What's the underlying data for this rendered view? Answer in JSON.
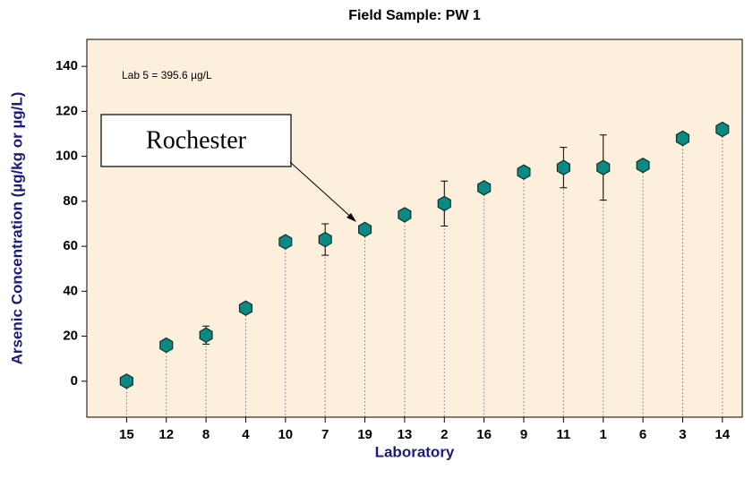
{
  "chart_data": {
    "type": "scatter",
    "title": "Field Sample: PW 1",
    "x_label": "Laboratory",
    "y_label": "Arsenic Concentration (µg/kg or µg/L)",
    "annotation": "Lab 5 = 395.6 µg/L",
    "callout": "Rochester",
    "categories": [
      "15",
      "12",
      "8",
      "4",
      "10",
      "7",
      "19",
      "13",
      "2",
      "16",
      "9",
      "11",
      "1",
      "6",
      "3",
      "14"
    ],
    "values": [
      0,
      16,
      20.5,
      32.5,
      62,
      63,
      67.5,
      74,
      79,
      86,
      93,
      95,
      95,
      96,
      108,
      112
    ],
    "errors": [
      null,
      null,
      4,
      null,
      null,
      7,
      null,
      null,
      10,
      null,
      null,
      9,
      14.5,
      null,
      null,
      null
    ],
    "color": "#0b8a84",
    "ylim": [
      -16,
      152
    ],
    "yticks": [
      0,
      20,
      40,
      60,
      80,
      100,
      120,
      140
    ],
    "background": "#fcefdc"
  }
}
